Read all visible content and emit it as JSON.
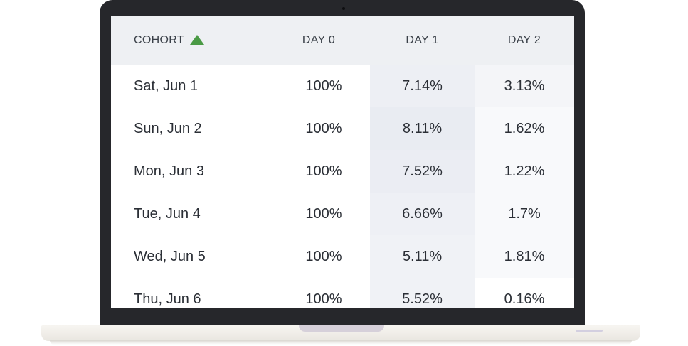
{
  "table": {
    "headers": {
      "cohort": "COHORT",
      "day0": "DAY 0",
      "day1": "DAY 1",
      "day2": "DAY 2"
    },
    "sort": {
      "column": "cohort",
      "direction": "ascending",
      "icon": "sort-ascending-icon",
      "color": "#4a9a45"
    },
    "rows": [
      {
        "cohort": "Sat, Jun 1",
        "day0": "100%",
        "day1": "7.14%",
        "day2": "3.13%"
      },
      {
        "cohort": "Sun, Jun 2",
        "day0": "100%",
        "day1": "8.11%",
        "day2": "1.62%"
      },
      {
        "cohort": "Mon, Jun 3",
        "day0": "100%",
        "day1": "7.52%",
        "day2": "1.22%"
      },
      {
        "cohort": "Tue, Jun 4",
        "day0": "100%",
        "day1": "6.66%",
        "day2": "1.7%"
      },
      {
        "cohort": "Wed, Jun 5",
        "day0": "100%",
        "day1": "5.11%",
        "day2": "1.81%"
      },
      {
        "cohort": "Thu, Jun 6",
        "day0": "100%",
        "day1": "5.52%",
        "day2": "0.16%"
      }
    ]
  },
  "colors": {
    "header_bg": "#eef0f3",
    "heat_day1": [
      "#edeff4",
      "#e9ecf2",
      "#ebedf3",
      "#eef0f5",
      "#f0f2f6",
      "#f0f2f6"
    ],
    "heat_day2": [
      "#f4f5f8",
      "#f8f9fb",
      "#f8f9fb",
      "#f8f9fb",
      "#f8f9fb",
      "#ffffff"
    ]
  }
}
